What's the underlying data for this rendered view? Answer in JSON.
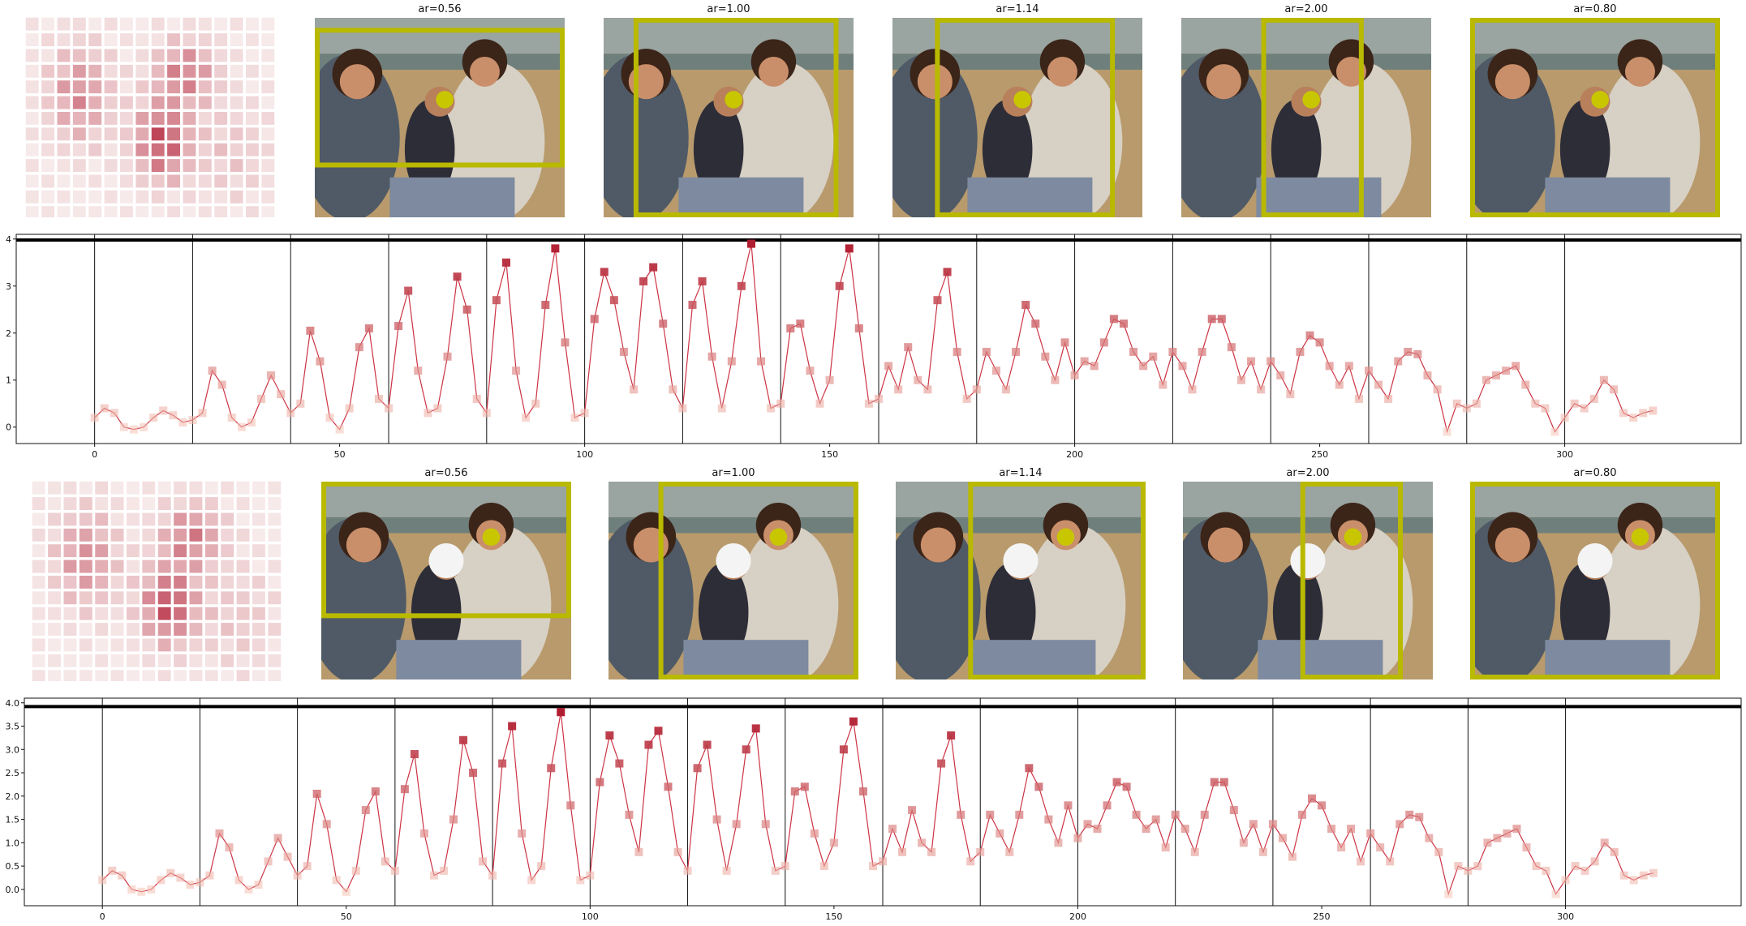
{
  "colors": {
    "box": "#b9b900",
    "dot": "#c8c600",
    "line": "#cc3344",
    "heat_low": "#f4e6e2",
    "heat_high": "#b01830"
  },
  "top_row": {
    "crops": [
      {
        "ar_label": "ar=0.56"
      },
      {
        "ar_label": "ar=1.00"
      },
      {
        "ar_label": "ar=1.14"
      },
      {
        "ar_label": "ar=2.00"
      },
      {
        "ar_label": "ar=0.80"
      }
    ]
  },
  "bottom_row": {
    "crops": [
      {
        "ar_label": "ar=0.56"
      },
      {
        "ar_label": "ar=1.00"
      },
      {
        "ar_label": "ar=1.14"
      },
      {
        "ar_label": "ar=2.00"
      },
      {
        "ar_label": "ar=0.80"
      }
    ]
  },
  "chart_data": [
    {
      "type": "line",
      "title": "",
      "xlabel": "",
      "ylabel": "",
      "xlim": [
        -16,
        336
      ],
      "ylim": [
        -0.35,
        4.1
      ],
      "x_ticks": [
        0,
        50,
        100,
        150,
        200,
        250,
        300
      ],
      "y_ticks": [
        0,
        1,
        2,
        3,
        4
      ],
      "y_tick_labels": [
        "0",
        "1",
        "2",
        "3",
        "4"
      ],
      "hline": 3.98,
      "vlines": [
        0,
        20,
        40,
        60,
        80,
        100,
        120,
        140,
        160,
        180,
        200,
        220,
        240,
        260,
        280,
        300
      ],
      "grid": false,
      "series": [
        {
          "x": [
            0,
            2,
            4,
            6,
            8,
            10,
            12,
            14,
            16,
            18,
            20,
            22,
            24,
            26,
            28,
            30,
            32,
            34,
            36,
            38,
            40,
            42,
            44,
            46,
            48,
            50,
            52,
            54,
            56,
            58,
            60,
            62,
            64,
            66,
            68,
            70,
            72,
            74,
            76,
            78,
            80,
            82,
            84,
            86,
            88,
            90,
            92,
            94,
            96,
            98,
            100,
            102,
            104,
            106,
            108,
            110,
            112,
            114,
            116,
            118,
            120,
            122,
            124,
            126,
            128,
            130,
            132,
            134,
            136,
            138,
            140,
            142,
            144,
            146,
            148,
            150,
            152,
            154,
            156,
            158,
            160,
            162,
            164,
            166,
            168,
            170,
            172,
            174,
            176,
            178,
            180,
            182,
            184,
            186,
            188,
            190,
            192,
            194,
            196,
            198,
            200,
            202,
            204,
            206,
            208,
            210,
            212,
            214,
            216,
            218,
            220,
            222,
            224,
            226,
            228,
            230,
            232,
            234,
            236,
            238,
            240,
            242,
            244,
            246,
            248,
            250,
            252,
            254,
            256,
            258,
            260,
            262,
            264,
            266,
            268,
            270,
            272,
            274,
            276,
            278,
            280,
            282,
            284,
            286,
            288,
            290,
            292,
            294,
            296,
            298,
            300,
            302,
            304,
            306,
            308,
            310,
            312,
            314,
            316,
            318
          ],
          "y": [
            0.2,
            0.4,
            0.3,
            0.0,
            -0.05,
            0.0,
            0.2,
            0.35,
            0.25,
            0.1,
            0.15,
            0.3,
            1.2,
            0.9,
            0.2,
            0.0,
            0.1,
            0.6,
            1.1,
            0.7,
            0.3,
            0.5,
            2.05,
            1.4,
            0.2,
            -0.05,
            0.4,
            1.7,
            2.1,
            0.6,
            0.4,
            2.15,
            2.9,
            1.2,
            0.3,
            0.4,
            1.5,
            3.2,
            2.5,
            0.6,
            0.3,
            2.7,
            3.5,
            1.2,
            0.2,
            0.5,
            2.6,
            3.8,
            1.8,
            0.2,
            0.3,
            2.3,
            3.3,
            2.7,
            1.6,
            0.8,
            3.1,
            3.4,
            2.2,
            0.8,
            0.4,
            2.6,
            3.1,
            1.5,
            0.4,
            1.4,
            3.0,
            3.9,
            1.4,
            0.4,
            0.5,
            2.1,
            2.2,
            1.2,
            0.5,
            1.0,
            3.0,
            3.8,
            2.1,
            0.5,
            0.6,
            1.3,
            0.8,
            1.7,
            1.0,
            0.8,
            2.7,
            3.3,
            1.6,
            0.6,
            0.8,
            1.6,
            1.2,
            0.8,
            1.6,
            2.6,
            2.2,
            1.5,
            1.0,
            1.8,
            1.1,
            1.4,
            1.3,
            1.8,
            2.3,
            2.2,
            1.6,
            1.3,
            1.5,
            0.9,
            1.6,
            1.3,
            0.8,
            1.6,
            2.3,
            2.3,
            1.7,
            1.0,
            1.4,
            0.8,
            1.4,
            1.1,
            0.7,
            1.6,
            1.95,
            1.8,
            1.3,
            0.9,
            1.3,
            0.6,
            1.2,
            0.9,
            0.6,
            1.4,
            1.6,
            1.55,
            1.1,
            0.8,
            -0.1,
            0.5,
            0.4,
            0.5,
            1.0,
            1.1,
            1.2,
            1.3,
            0.9,
            0.5,
            0.4,
            -0.1,
            0.2,
            0.5,
            0.4,
            0.6,
            1.0,
            0.8,
            0.3,
            0.2,
            0.3,
            0.35
          ]
        }
      ]
    },
    {
      "type": "line",
      "title": "",
      "xlabel": "",
      "ylabel": "",
      "xlim": [
        -16,
        336
      ],
      "ylim": [
        -0.35,
        4.1
      ],
      "x_ticks": [
        0,
        50,
        100,
        150,
        200,
        250,
        300
      ],
      "y_ticks": [
        0.0,
        0.5,
        1.0,
        1.5,
        2.0,
        2.5,
        3.0,
        3.5,
        4.0
      ],
      "y_tick_labels": [
        "0.0",
        "0.5",
        "1.0",
        "1.5",
        "2.0",
        "2.5",
        "3.0",
        "3.5",
        "4.0"
      ],
      "hline": 3.92,
      "vlines": [
        0,
        20,
        40,
        60,
        80,
        100,
        120,
        140,
        160,
        180,
        200,
        220,
        240,
        260,
        280,
        300
      ],
      "grid": false,
      "series": [
        {
          "x": [
            0,
            2,
            4,
            6,
            8,
            10,
            12,
            14,
            16,
            18,
            20,
            22,
            24,
            26,
            28,
            30,
            32,
            34,
            36,
            38,
            40,
            42,
            44,
            46,
            48,
            50,
            52,
            54,
            56,
            58,
            60,
            62,
            64,
            66,
            68,
            70,
            72,
            74,
            76,
            78,
            80,
            82,
            84,
            86,
            88,
            90,
            92,
            94,
            96,
            98,
            100,
            102,
            104,
            106,
            108,
            110,
            112,
            114,
            116,
            118,
            120,
            122,
            124,
            126,
            128,
            130,
            132,
            134,
            136,
            138,
            140,
            142,
            144,
            146,
            148,
            150,
            152,
            154,
            156,
            158,
            160,
            162,
            164,
            166,
            168,
            170,
            172,
            174,
            176,
            178,
            180,
            182,
            184,
            186,
            188,
            190,
            192,
            194,
            196,
            198,
            200,
            202,
            204,
            206,
            208,
            210,
            212,
            214,
            216,
            218,
            220,
            222,
            224,
            226,
            228,
            230,
            232,
            234,
            236,
            238,
            240,
            242,
            244,
            246,
            248,
            250,
            252,
            254,
            256,
            258,
            260,
            262,
            264,
            266,
            268,
            270,
            272,
            274,
            276,
            278,
            280,
            282,
            284,
            286,
            288,
            290,
            292,
            294,
            296,
            298,
            300,
            302,
            304,
            306,
            308,
            310,
            312,
            314,
            316,
            318
          ],
          "y": [
            0.2,
            0.4,
            0.3,
            0.0,
            -0.05,
            0.0,
            0.2,
            0.35,
            0.25,
            0.1,
            0.15,
            0.3,
            1.2,
            0.9,
            0.2,
            0.0,
            0.1,
            0.6,
            1.1,
            0.7,
            0.3,
            0.5,
            2.05,
            1.4,
            0.2,
            -0.05,
            0.4,
            1.7,
            2.1,
            0.6,
            0.4,
            2.15,
            2.9,
            1.2,
            0.3,
            0.4,
            1.5,
            3.2,
            2.5,
            0.6,
            0.3,
            2.7,
            3.5,
            1.2,
            0.2,
            0.5,
            2.6,
            3.8,
            1.8,
            0.2,
            0.3,
            2.3,
            3.3,
            2.7,
            1.6,
            0.8,
            3.1,
            3.4,
            2.2,
            0.8,
            0.4,
            2.6,
            3.1,
            1.5,
            0.4,
            1.4,
            3.0,
            3.45,
            1.4,
            0.4,
            0.5,
            2.1,
            2.2,
            1.2,
            0.5,
            1.0,
            3.0,
            3.6,
            2.1,
            0.5,
            0.6,
            1.3,
            0.8,
            1.7,
            1.0,
            0.8,
            2.7,
            3.3,
            1.6,
            0.6,
            0.8,
            1.6,
            1.2,
            0.8,
            1.6,
            2.6,
            2.2,
            1.5,
            1.0,
            1.8,
            1.1,
            1.4,
            1.3,
            1.8,
            2.3,
            2.2,
            1.6,
            1.3,
            1.5,
            0.9,
            1.6,
            1.3,
            0.8,
            1.6,
            2.3,
            2.3,
            1.7,
            1.0,
            1.4,
            0.8,
            1.4,
            1.1,
            0.7,
            1.6,
            1.95,
            1.8,
            1.3,
            0.9,
            1.3,
            0.6,
            1.2,
            0.9,
            0.6,
            1.4,
            1.6,
            1.55,
            1.1,
            0.8,
            -0.1,
            0.5,
            0.4,
            0.5,
            1.0,
            1.1,
            1.2,
            1.3,
            0.9,
            0.5,
            0.4,
            -0.1,
            0.2,
            0.5,
            0.4,
            0.6,
            1.0,
            0.8,
            0.3,
            0.2,
            0.3,
            0.35
          ]
        }
      ]
    }
  ]
}
